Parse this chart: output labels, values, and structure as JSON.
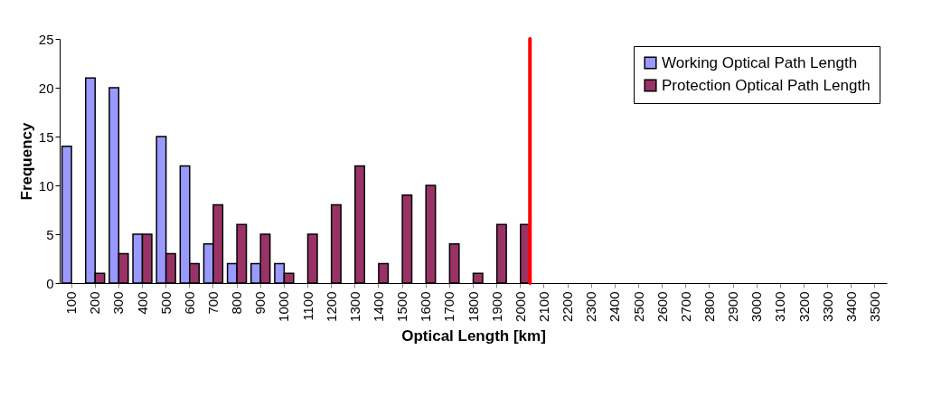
{
  "chart_data": {
    "type": "bar",
    "xlabel": "Optical  Length [km]",
    "ylabel": "Frequency",
    "categories": [
      "100",
      "200",
      "300",
      "400",
      "500",
      "600",
      "700",
      "800",
      "900",
      "1000",
      "1100",
      "1200",
      "1300",
      "1400",
      "1500",
      "1600",
      "1700",
      "1800",
      "1900",
      "2000",
      "2100",
      "2200",
      "2300",
      "2400",
      "2500",
      "2600",
      "2700",
      "2800",
      "2900",
      "3000",
      "3100",
      "3200",
      "3300",
      "3400",
      "3500"
    ],
    "series": [
      {
        "name": "Working Optical Path Length",
        "color": "#9999ff",
        "values": [
          14,
          21,
          20,
          5,
          15,
          12,
          4,
          2,
          2,
          2,
          0,
          0,
          0,
          0,
          0,
          0,
          0,
          0,
          0,
          0,
          0,
          0,
          0,
          0,
          0,
          0,
          0,
          0,
          0,
          0,
          0,
          0,
          0,
          0,
          0
        ]
      },
      {
        "name": "Protection Optical Path Length",
        "color": "#993366",
        "values": [
          0,
          1,
          3,
          5,
          3,
          2,
          8,
          6,
          5,
          1,
          5,
          8,
          12,
          2,
          9,
          10,
          4,
          1,
          6,
          6,
          0,
          0,
          0,
          0,
          0,
          0,
          0,
          0,
          0,
          0,
          0,
          0,
          0,
          0,
          0
        ]
      }
    ],
    "ylim": [
      0,
      25
    ],
    "yticks": [
      0,
      5,
      10,
      15,
      20,
      25
    ],
    "grid": false,
    "legend": "top right",
    "ref_lines": [
      {
        "axis": "x",
        "value": "2000",
        "color": "#ff0000"
      }
    ]
  }
}
